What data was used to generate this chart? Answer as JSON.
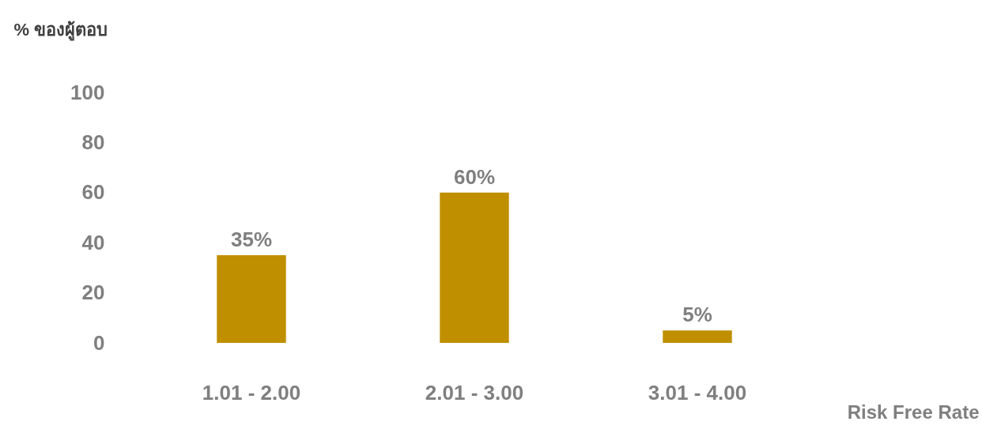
{
  "chart_data": {
    "type": "bar",
    "ylabel": "% ของผู้ตอบ",
    "xlabel": "Risk Free Rate",
    "categories": [
      "1.01 - 2.00",
      "2.01 - 3.00",
      "3.01 - 4.00"
    ],
    "values": [
      35,
      60,
      5
    ],
    "value_labels": [
      "35%",
      "60%",
      "5%"
    ],
    "color": "#bf8f00",
    "ylim": [
      0,
      100
    ],
    "yticks": [
      0,
      20,
      40,
      60,
      80,
      100
    ]
  }
}
